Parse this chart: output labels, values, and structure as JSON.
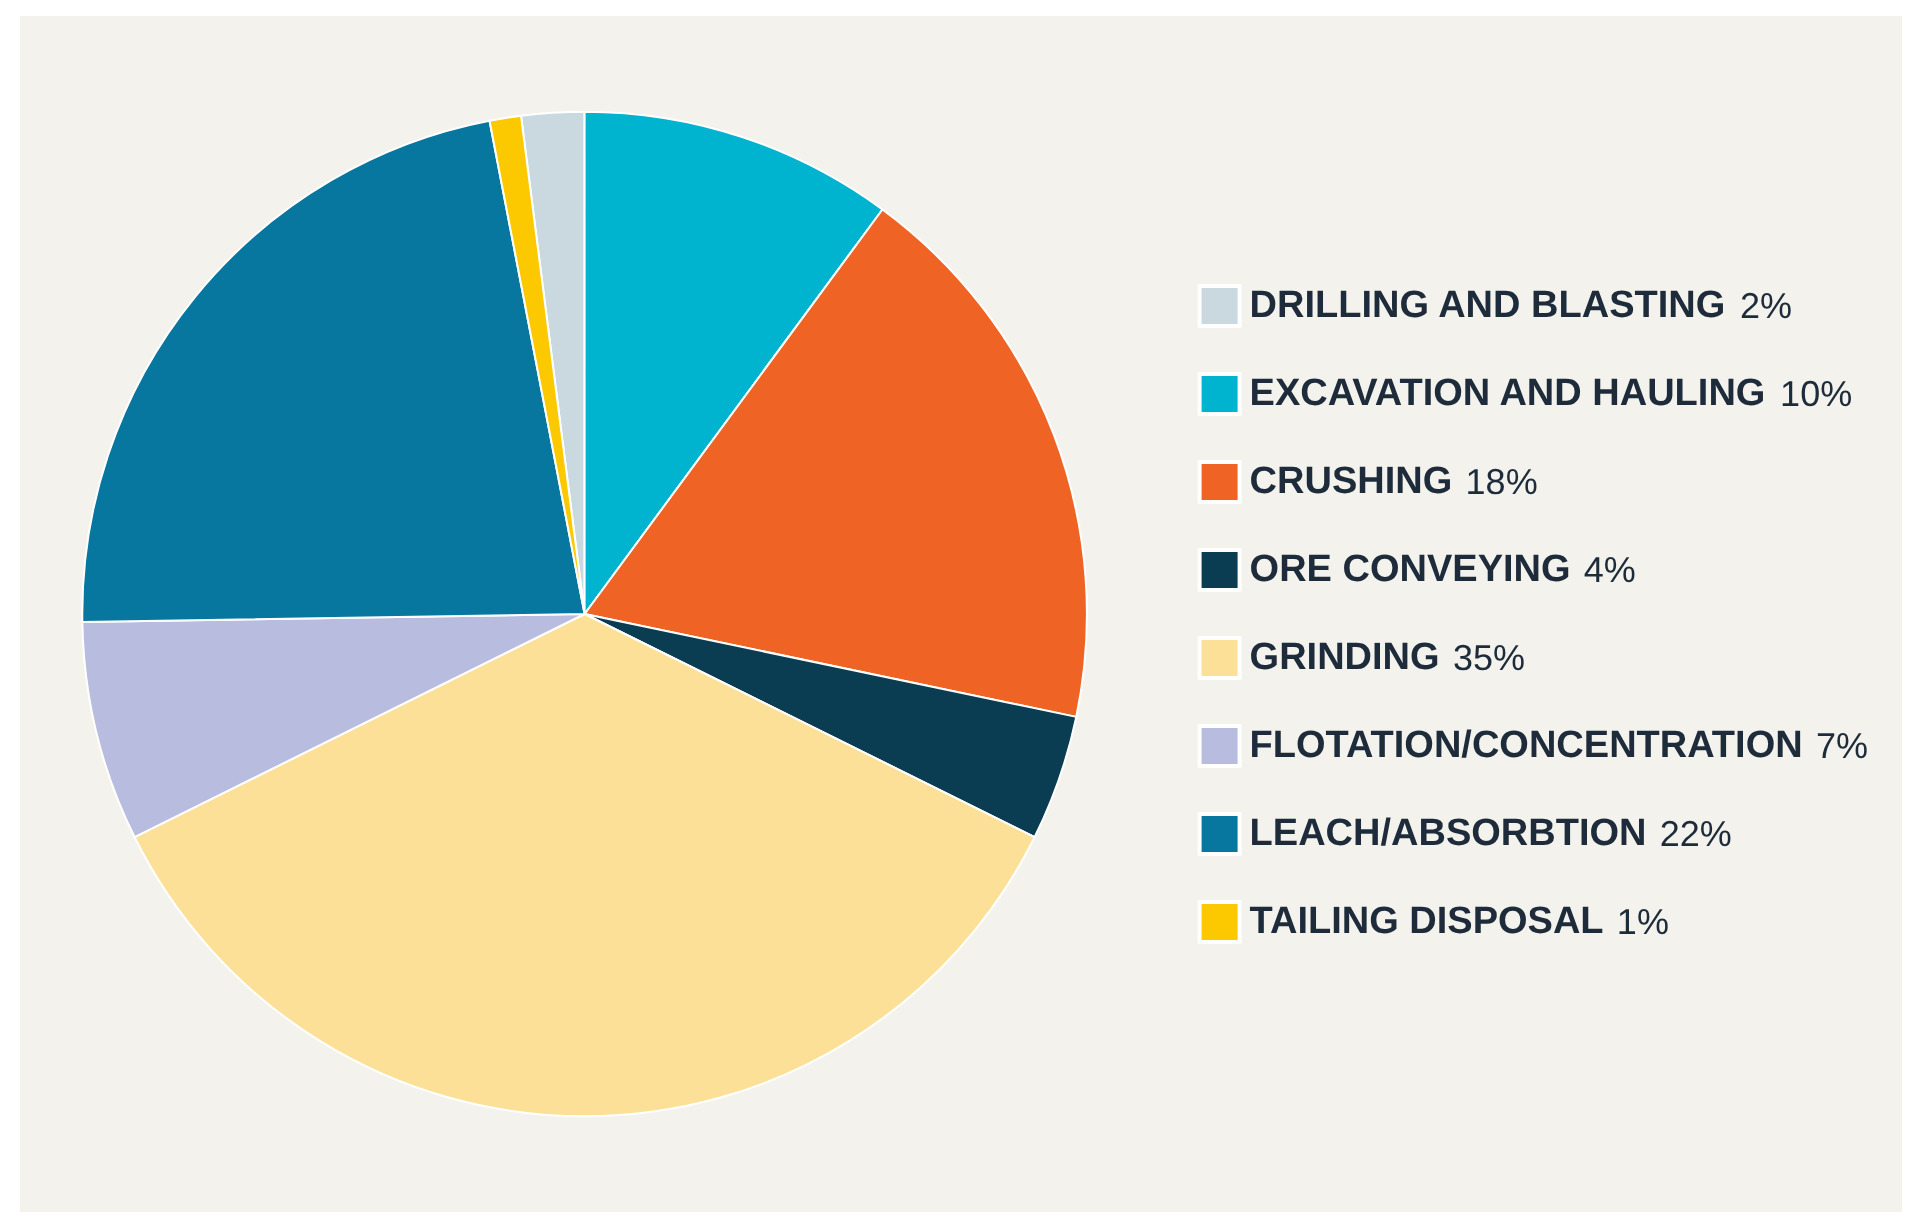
{
  "chart_data": {
    "type": "pie",
    "categories": [
      "DRILLING AND BLASTING",
      "EXCAVATION AND HAULING",
      "CRUSHING",
      "ORE CONVEYING",
      "GRINDING",
      "FLOTATION/CONCENTRATION",
      "LEACH/ABSORBTION",
      "TAILING DISPOSAL"
    ],
    "values": [
      2,
      10,
      18,
      4,
      35,
      7,
      22,
      1
    ],
    "value_labels": [
      "2%",
      "10%",
      "18%",
      "4%",
      "35%",
      "7%",
      "22%",
      "1%"
    ],
    "colors": [
      "#c9d9df",
      "#00b4d0",
      "#ef6424",
      "#0b3d52",
      "#fde098",
      "#b8bddf",
      "#0877a0",
      "#fcc800"
    ],
    "legend": "right"
  }
}
